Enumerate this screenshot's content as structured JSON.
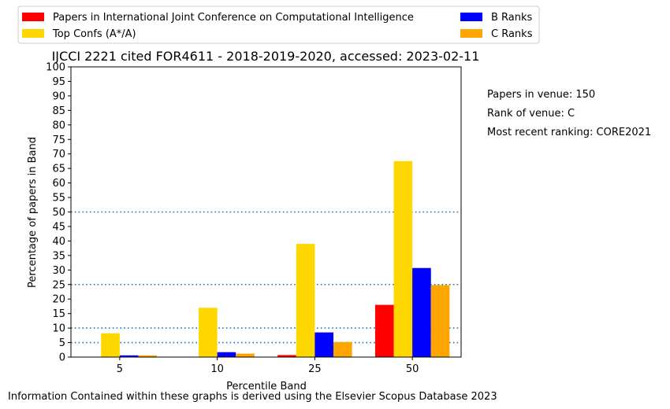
{
  "chart_data": {
    "type": "bar",
    "title": "IJCCI 2221 cited FOR4611 - 2018-2019-2020, accessed: 2023-02-11",
    "xlabel": "Percentile Band",
    "ylabel": "Percentage of papers in Band",
    "categories": [
      "5",
      "10",
      "25",
      "50"
    ],
    "ylim": [
      0,
      100
    ],
    "yticks": [
      0,
      5,
      10,
      15,
      20,
      25,
      30,
      35,
      40,
      45,
      50,
      55,
      60,
      65,
      70,
      75,
      80,
      85,
      90,
      95,
      100
    ],
    "reference_lines": [
      5,
      10,
      25,
      50
    ],
    "legend_position": "top",
    "series": [
      {
        "name": "Papers in International Joint Conference on Computational Intelligence",
        "color": "#ff0000",
        "values": [
          0,
          0,
          0.7,
          18
        ]
      },
      {
        "name": "Top Confs (A*/A)",
        "color": "#ffd700",
        "values": [
          8.2,
          17,
          39,
          67.5
        ]
      },
      {
        "name": "B Ranks",
        "color": "#0000ff",
        "values": [
          0.6,
          1.7,
          8.5,
          30.7
        ]
      },
      {
        "name": "C Ranks",
        "color": "#ffa500",
        "values": [
          0.6,
          1.2,
          5.2,
          24.8
        ]
      }
    ]
  },
  "info": {
    "papers_in_venue": "Papers in venue: 150",
    "rank_of_venue": "Rank of venue: C",
    "recent_ranking": "Most recent ranking: CORE2021"
  },
  "footer": "Information Contained within these graphs is derived using the Elsevier Scopus Database 2023"
}
